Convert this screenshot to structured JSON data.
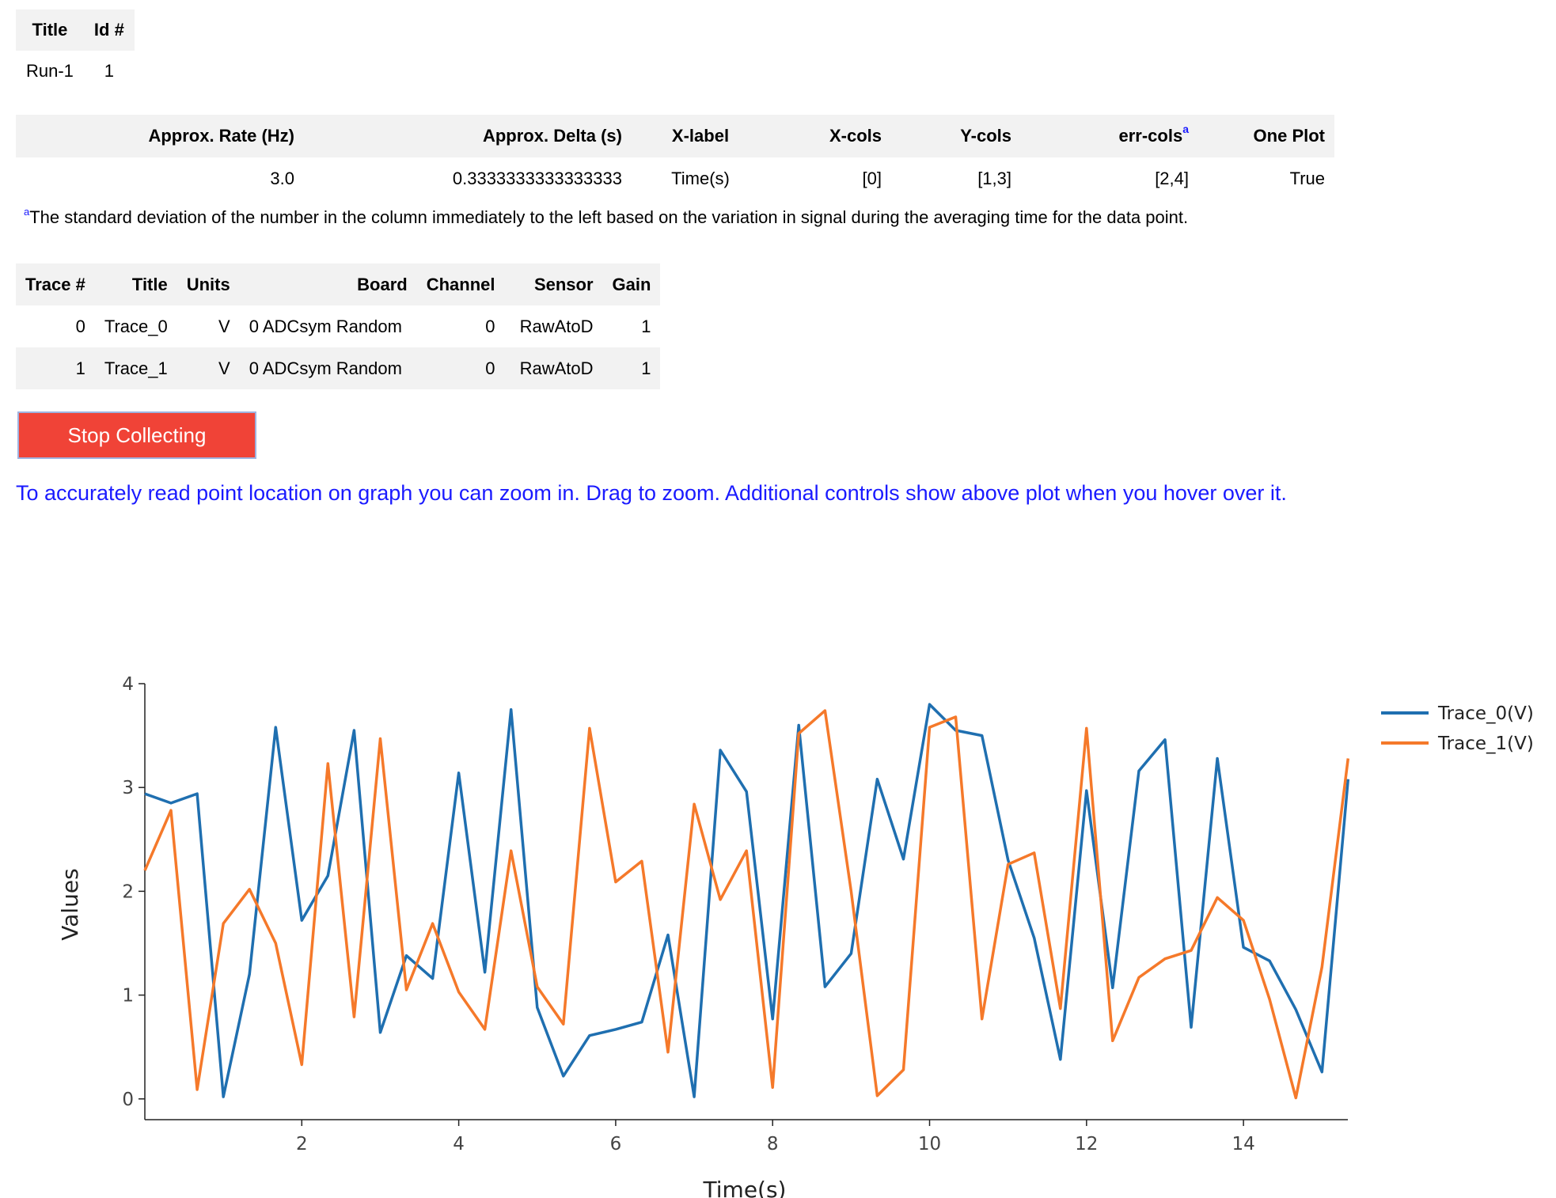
{
  "run_info": {
    "headers": [
      "Title",
      "Id #"
    ],
    "rows": [
      [
        "Run-1",
        "1"
      ]
    ]
  },
  "params": {
    "headers": [
      "Approx. Rate (Hz)",
      "Approx. Delta (s)",
      "X-label",
      "X-cols",
      "Y-cols",
      "err-cols",
      "One Plot"
    ],
    "err_cols_sup": "a",
    "rows": [
      [
        "3.0",
        "0.3333333333333333",
        "Time(s)",
        "[0]",
        "[1,3]",
        "[2,4]",
        "True"
      ]
    ]
  },
  "footnote": {
    "marker": "a",
    "text": "The standard deviation of the number in the column immediately to the left based on the variation in signal during the averaging time for the data point."
  },
  "traces": {
    "headers": [
      "Trace #",
      "Title",
      "Units",
      "Board",
      "Channel",
      "Sensor",
      "Gain"
    ],
    "rows": [
      [
        "0",
        "Trace_0",
        "V",
        "0 ADCsym Random",
        "0",
        "RawAtoD",
        "1"
      ],
      [
        "1",
        "Trace_1",
        "V",
        "0 ADCsym Random",
        "0",
        "RawAtoD",
        "1"
      ]
    ]
  },
  "stop_button": {
    "label": "Stop Collecting",
    "color": "#f04337"
  },
  "hint": {
    "text": "To accurately read point location on graph you can zoom in. Drag to zoom. Additional controls show above plot when you hover over it.",
    "color": "#1a1aff"
  },
  "chart_data": {
    "type": "line",
    "xlabel": "Time(s)",
    "ylabel": "Values",
    "xlim": [
      0,
      15.33
    ],
    "ylim": [
      -0.2,
      4
    ],
    "x_ticks": [
      2,
      4,
      6,
      8,
      10,
      12,
      14
    ],
    "y_ticks": [
      0,
      1,
      2,
      3,
      4
    ],
    "legend_position": "top-right",
    "grid": false,
    "x": [
      0,
      0.333,
      0.667,
      1.0,
      1.333,
      1.667,
      2.0,
      2.333,
      2.667,
      3.0,
      3.333,
      3.667,
      4.0,
      4.333,
      4.667,
      5.0,
      5.333,
      5.667,
      6.0,
      6.333,
      6.667,
      7.0,
      7.333,
      7.667,
      8.0,
      8.333,
      8.667,
      9.0,
      9.333,
      9.667,
      10.0,
      10.333,
      10.667,
      11.0,
      11.333,
      11.667,
      12.0,
      12.333,
      12.667,
      13.0,
      13.333,
      13.667,
      14.0,
      14.333,
      14.667,
      15.0,
      15.333
    ],
    "series": [
      {
        "name": "Trace_0(V)",
        "color": "#1f6fb0",
        "values": [
          2.94,
          2.85,
          2.94,
          0.02,
          1.2,
          3.58,
          1.72,
          2.15,
          3.55,
          0.64,
          1.38,
          1.16,
          3.14,
          1.22,
          3.75,
          0.88,
          0.22,
          0.61,
          0.67,
          0.74,
          1.58,
          0.02,
          3.36,
          2.96,
          0.77,
          3.6,
          1.08,
          1.4,
          3.08,
          2.31,
          3.8,
          3.55,
          3.5,
          2.3,
          1.55,
          0.38,
          2.97,
          1.07,
          3.16,
          3.46,
          0.69,
          3.28,
          1.46,
          1.33,
          0.86,
          0.26,
          3.08
        ]
      },
      {
        "name": "Trace_1(V)",
        "color": "#f5792a",
        "values": [
          2.2,
          2.78,
          0.09,
          1.69,
          2.02,
          1.5,
          0.33,
          3.23,
          0.79,
          3.47,
          1.05,
          1.69,
          1.03,
          0.67,
          2.39,
          1.08,
          0.72,
          3.57,
          2.09,
          2.29,
          0.45,
          2.84,
          1.92,
          2.39,
          0.11,
          3.52,
          3.74,
          2.0,
          0.03,
          0.28,
          3.58,
          3.68,
          0.77,
          2.26,
          2.37,
          0.87,
          3.57,
          0.56,
          1.17,
          1.35,
          1.43,
          1.94,
          1.72,
          0.96,
          0.01,
          1.27,
          3.28
        ]
      }
    ]
  }
}
